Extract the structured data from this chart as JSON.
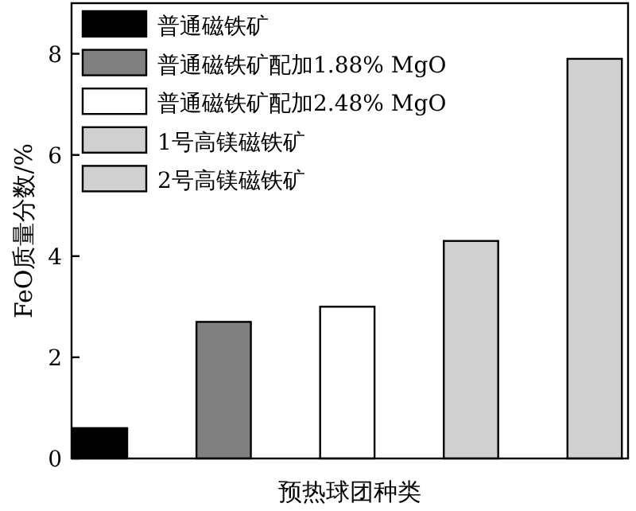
{
  "chart_data": {
    "type": "bar",
    "stacked": true,
    "ylabel": "FeO质量分数/%",
    "xlabel": "预热球团种类",
    "categories": [
      null,
      null,
      null,
      null,
      null
    ],
    "series": [
      {
        "name": "普通磁铁矿",
        "color": "#000000",
        "values": [
          0.6,
          null,
          null,
          null,
          null
        ]
      },
      {
        "name": "普通磁铁矿配加1.88% MgO",
        "color": "#808080",
        "values": [
          null,
          2.7,
          null,
          null,
          null
        ]
      },
      {
        "name": "普通磁铁矿配加2.48% MgO",
        "color": "#ffffff",
        "values": [
          null,
          null,
          3.0,
          null,
          null
        ]
      },
      {
        "name": "1号高镁磁铁矿",
        "color": "#d0d0d0",
        "values": [
          null,
          null,
          null,
          4.3,
          null
        ]
      },
      {
        "name": "2号高镁磁铁矿",
        "color": "#d0d0d0",
        "values": [
          null,
          null,
          null,
          null,
          7.9
        ]
      }
    ],
    "ylim": [
      0,
      9
    ],
    "yticks": [
      0,
      2,
      4,
      6,
      8
    ],
    "legend": "top left",
    "tick_labels": "y"
  }
}
